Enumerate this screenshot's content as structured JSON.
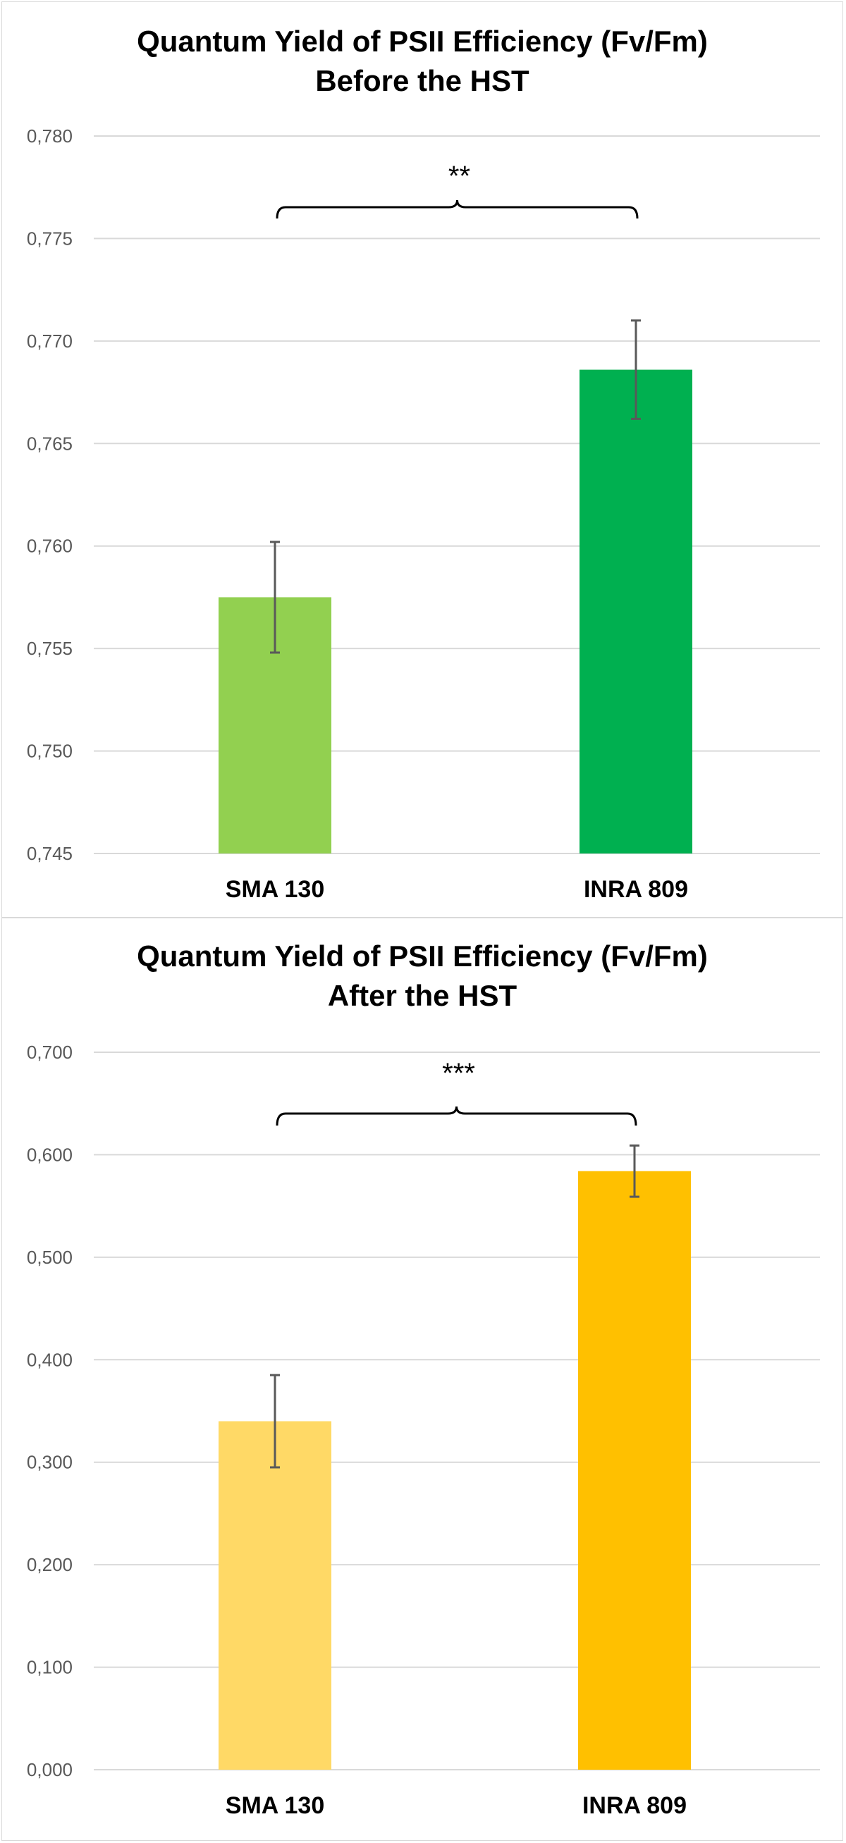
{
  "chart_data": [
    {
      "type": "bar",
      "title": "Quantum Yield of PSII Efficiency (Fv/Fm)",
      "subtitle": "Before the HST",
      "categories": [
        "SMA 130",
        "INRA 809"
      ],
      "values": [
        0.7575,
        0.7686
      ],
      "error": [
        0.0027,
        0.0024
      ],
      "colors": [
        "#92d050",
        "#00b050"
      ],
      "ylim": [
        0.745,
        0.78
      ],
      "yticks": [
        "0,745",
        "0,750",
        "0,755",
        "0,760",
        "0,765",
        "0,770",
        "0,775",
        "0,780"
      ],
      "significance": "**",
      "grid": true
    },
    {
      "type": "bar",
      "title": "Quantum Yield of PSII Efficiency (Fv/Fm)",
      "subtitle": "After the HST",
      "categories": [
        "SMA 130",
        "INRA 809"
      ],
      "values": [
        0.34,
        0.584
      ],
      "error": [
        0.045,
        0.025
      ],
      "colors": [
        "#ffd966",
        "#ffc000"
      ],
      "ylim": [
        0.0,
        0.7
      ],
      "yticks": [
        "0,000",
        "0,100",
        "0,200",
        "0,300",
        "0,400",
        "0,500",
        "0,600",
        "0,700"
      ],
      "significance": "***",
      "grid": true
    }
  ]
}
